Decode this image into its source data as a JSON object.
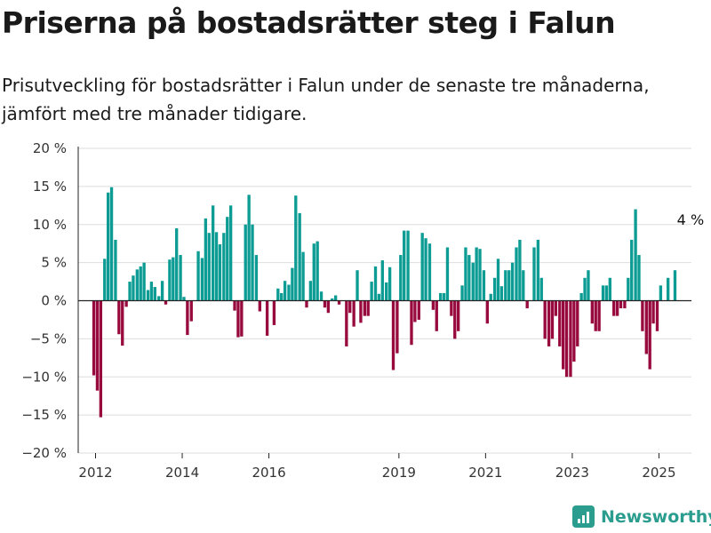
{
  "title": "Priserna på bostadsrätter steg i Falun",
  "subtitle": "Prisutveckling för bostadsrätter i Falun under de senaste tre månaderna, jämfört med tre månader tidigare.",
  "brand": {
    "name": "Newsworthy",
    "icon": "newsworthy-logo-icon"
  },
  "colors": {
    "positive": "#0c9c94",
    "negative": "#980a3e",
    "grid": "#dddddd",
    "axis": "#222222",
    "brand": "#2a9d8f"
  },
  "chart_data": {
    "type": "bar",
    "ylabel": "",
    "xlabel": "",
    "ylim": [
      -20,
      20
    ],
    "yticks": [
      20,
      15,
      10,
      5,
      0,
      -5,
      -10,
      -15,
      -20
    ],
    "ytick_labels": [
      "20 %",
      "15 %",
      "10 %",
      "5 %",
      "0 %",
      "−5 %",
      "−10 %",
      "−15 %",
      "−20 %"
    ],
    "xlim": [
      2011.6,
      2025.75
    ],
    "xticks": [
      2012,
      2014,
      2016,
      2019,
      2021,
      2023,
      2025
    ],
    "xtick_labels": [
      "2012",
      "2014",
      "2016",
      "2019",
      "2021",
      "2023",
      "2025"
    ],
    "grid": true,
    "annotation": {
      "text": "4 %",
      "x": 2025.42,
      "y": 4
    },
    "x": [
      2011.96,
      2012.04,
      2012.12,
      2012.21,
      2012.29,
      2012.37,
      2012.46,
      2012.54,
      2012.62,
      2012.71,
      2012.79,
      2012.87,
      2012.96,
      2013.04,
      2013.12,
      2013.21,
      2013.29,
      2013.37,
      2013.46,
      2013.54,
      2013.62,
      2013.71,
      2013.79,
      2013.87,
      2013.96,
      2014.04,
      2014.12,
      2014.21,
      2014.29,
      2014.37,
      2014.46,
      2014.54,
      2014.62,
      2014.71,
      2014.79,
      2014.87,
      2014.96,
      2015.04,
      2015.12,
      2015.21,
      2015.29,
      2015.37,
      2015.46,
      2015.54,
      2015.62,
      2015.71,
      2015.79,
      2015.87,
      2015.96,
      2016.04,
      2016.12,
      2016.21,
      2016.29,
      2016.37,
      2016.46,
      2016.54,
      2016.62,
      2016.71,
      2016.79,
      2016.87,
      2016.96,
      2017.04,
      2017.12,
      2017.21,
      2017.29,
      2017.37,
      2017.46,
      2017.54,
      2017.62,
      2017.71,
      2017.79,
      2017.87,
      2017.96,
      2018.04,
      2018.12,
      2018.21,
      2018.29,
      2018.37,
      2018.46,
      2018.54,
      2018.62,
      2018.71,
      2018.79,
      2018.87,
      2018.96,
      2019.04,
      2019.12,
      2019.21,
      2019.29,
      2019.37,
      2019.46,
      2019.54,
      2019.62,
      2019.71,
      2019.79,
      2019.87,
      2019.96,
      2020.04,
      2020.12,
      2020.21,
      2020.29,
      2020.37,
      2020.46,
      2020.54,
      2020.62,
      2020.71,
      2020.79,
      2020.87,
      2020.96,
      2021.04,
      2021.12,
      2021.21,
      2021.29,
      2021.37,
      2021.46,
      2021.54,
      2021.62,
      2021.71,
      2021.79,
      2021.87,
      2021.96,
      2022.04,
      2022.12,
      2022.21,
      2022.29,
      2022.37,
      2022.46,
      2022.54,
      2022.62,
      2022.71,
      2022.79,
      2022.87,
      2022.96,
      2023.04,
      2023.12,
      2023.21,
      2023.29,
      2023.37,
      2023.46,
      2023.54,
      2023.62,
      2023.71,
      2023.79,
      2023.87,
      2023.96,
      2024.04,
      2024.12,
      2024.21,
      2024.29,
      2024.37,
      2024.46,
      2024.54,
      2024.62,
      2024.71,
      2024.79,
      2024.87,
      2024.96,
      2025.04,
      2025.12,
      2025.21,
      2025.29,
      2025.37
    ],
    "values": [
      -9.8,
      -11.8,
      -15.3,
      5.5,
      14.2,
      14.9,
      8,
      -4.4,
      -5.9,
      -0.8,
      2.5,
      3.3,
      4.1,
      4.5,
      5,
      1.4,
      2.5,
      1.8,
      0.6,
      2.6,
      -0.5,
      5.4,
      5.7,
      9.5,
      6,
      0.5,
      -4.5,
      -2.7,
      0,
      6.5,
      5.6,
      10.8,
      8.9,
      12.5,
      9,
      7.4,
      8.9,
      11,
      12.5,
      -1.3,
      -4.8,
      -4.7,
      10,
      13.9,
      10,
      6,
      -1.4,
      0,
      -4.6,
      0,
      -3.2,
      1.6,
      1,
      2.6,
      2.1,
      4.3,
      13.8,
      11.5,
      6.4,
      -0.9,
      2.6,
      7.5,
      7.8,
      1.2,
      -0.9,
      -1.6,
      0.3,
      0.7,
      -0.5,
      0,
      -6,
      -1.6,
      -3.4,
      4,
      -2.9,
      -2,
      -2,
      2.5,
      4.5,
      0.9,
      5.3,
      2.4,
      4.4,
      -9.1,
      -6.9,
      6,
      9.2,
      9.2,
      -5.8,
      -2.8,
      -2.5,
      8.9,
      8.2,
      7.5,
      -1.2,
      -4,
      1,
      1,
      7,
      -2,
      -5,
      -4,
      2,
      7,
      6,
      5,
      7,
      6.8,
      4,
      -3,
      0.9,
      3,
      5.5,
      1.9,
      4,
      4,
      5,
      7,
      8,
      4,
      -1,
      0,
      7,
      8,
      3,
      -5,
      -6,
      -5,
      -2,
      -6,
      -9,
      -10,
      -10,
      -8,
      -6,
      1,
      3,
      4,
      -3,
      -4,
      -4,
      2,
      2,
      3,
      -2,
      -2,
      -1,
      -1,
      3,
      8,
      12,
      6,
      -4,
      -7,
      -9,
      -3,
      -4,
      2,
      0,
      3,
      0,
      4
    ]
  }
}
